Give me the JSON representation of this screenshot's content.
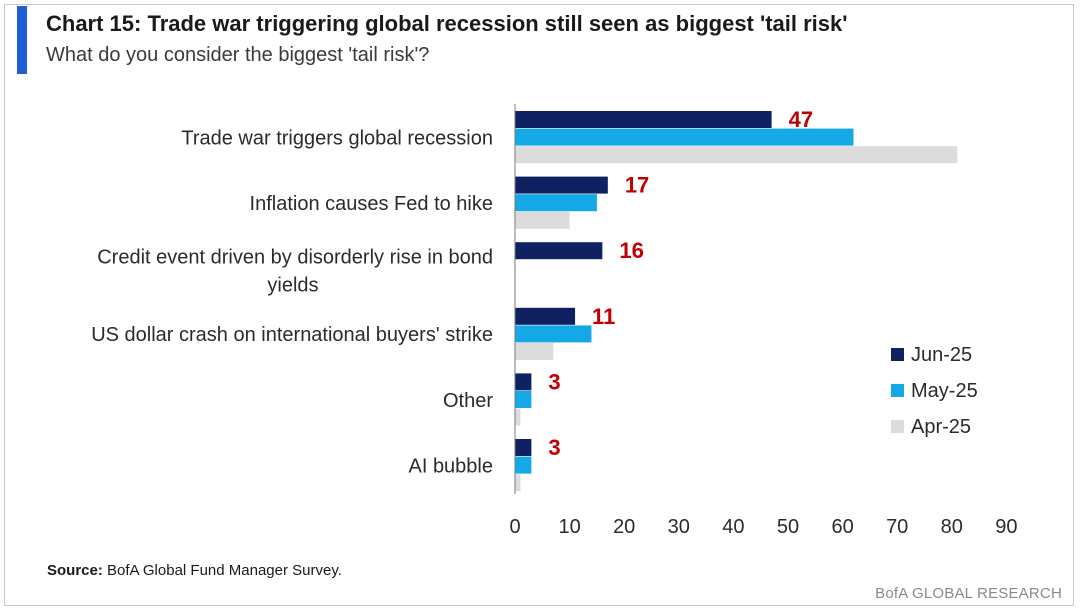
{
  "header": {
    "title": "Chart 15: Trade war triggering global recession still seen as biggest 'tail risk'",
    "subtitle": "What do you consider the biggest 'tail risk'?"
  },
  "footer": {
    "source_label": "Source:",
    "source_text": " BofA Global Fund Manager Survey.",
    "brand": "BofA GLOBAL RESEARCH"
  },
  "colors": {
    "accent": "#1f5fd6",
    "jun": "#0f2161",
    "may": "#14a8e6",
    "apr": "#dcdcdc",
    "data_label": "#c00000"
  },
  "chart_data": {
    "type": "bar",
    "orientation": "horizontal",
    "title": "Chart 15: Trade war triggering global recession still seen as biggest 'tail risk'",
    "subtitle": "What do you consider the biggest 'tail risk'?",
    "categories": [
      [
        "Trade war triggers global recession"
      ],
      [
        "Inflation causes Fed to hike"
      ],
      [
        "Credit event driven by disorderly rise in bond",
        "yields"
      ],
      [
        "US dollar crash on international buyers' strike"
      ],
      [
        "Other"
      ],
      [
        "AI bubble"
      ]
    ],
    "series": [
      {
        "name": "Jun-25",
        "values": [
          47,
          17,
          16,
          11,
          3,
          3
        ]
      },
      {
        "name": "May-25",
        "values": [
          62,
          15,
          0,
          14,
          3,
          3
        ]
      },
      {
        "name": "Apr-25",
        "values": [
          81,
          10,
          0,
          7,
          1,
          1
        ]
      }
    ],
    "data_labels": [
      "47",
      "17",
      "16",
      "11",
      "3",
      "3"
    ],
    "xlim": [
      0,
      90
    ],
    "xticks": [
      0,
      10,
      20,
      30,
      40,
      50,
      60,
      70,
      80,
      90
    ],
    "grid": false,
    "legend_position": "right"
  }
}
